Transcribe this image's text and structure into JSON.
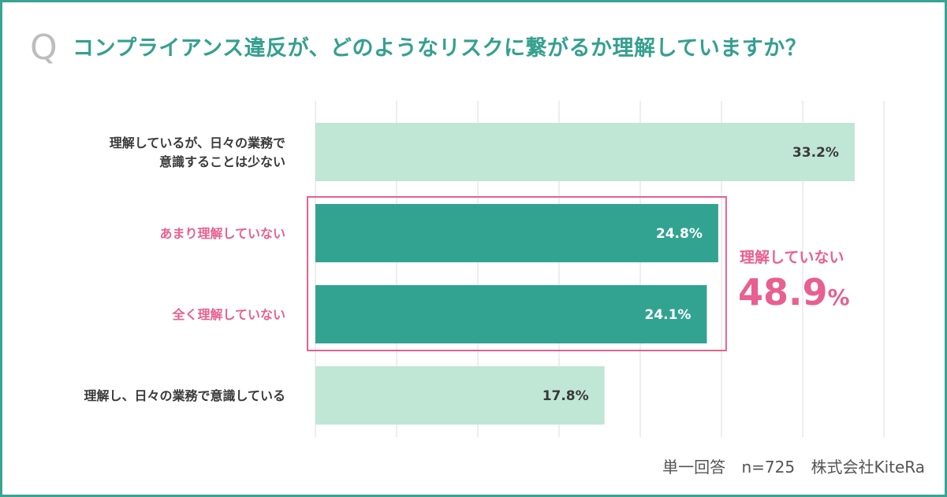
{
  "question": {
    "mark": "Q",
    "title": "コンプライアンス違反が、どのようなリスクに繋がるか理解していますか？"
  },
  "chart_data": {
    "type": "bar",
    "orientation": "horizontal",
    "categories": [
      [
        "理解しているが、日々の業務で",
        "意識することは少ない"
      ],
      [
        "あまり理解していない"
      ],
      [
        "全く理解していない"
      ],
      [
        "理解し、日々の業務で意識している"
      ]
    ],
    "values": [
      33.2,
      24.8,
      24.1,
      17.8
    ],
    "value_labels": [
      "33.2%",
      "24.8%",
      "24.1%",
      "17.8%"
    ],
    "highlighted": [
      false,
      true,
      true,
      false
    ],
    "xlim": [
      0,
      35
    ],
    "grid": true,
    "colors": {
      "normal_bar": "#c0e6d5",
      "highlight_bar": "#33a391",
      "highlight_text": "#e8608f",
      "normal_text": "#3a3a3a",
      "grid": "#dddddd"
    }
  },
  "summary": {
    "label": "理解していない",
    "value": "48.9",
    "unit": "%"
  },
  "footer": {
    "answer_type": "単一回答",
    "sample": "n=725",
    "company": "株式会社KiteRa"
  }
}
